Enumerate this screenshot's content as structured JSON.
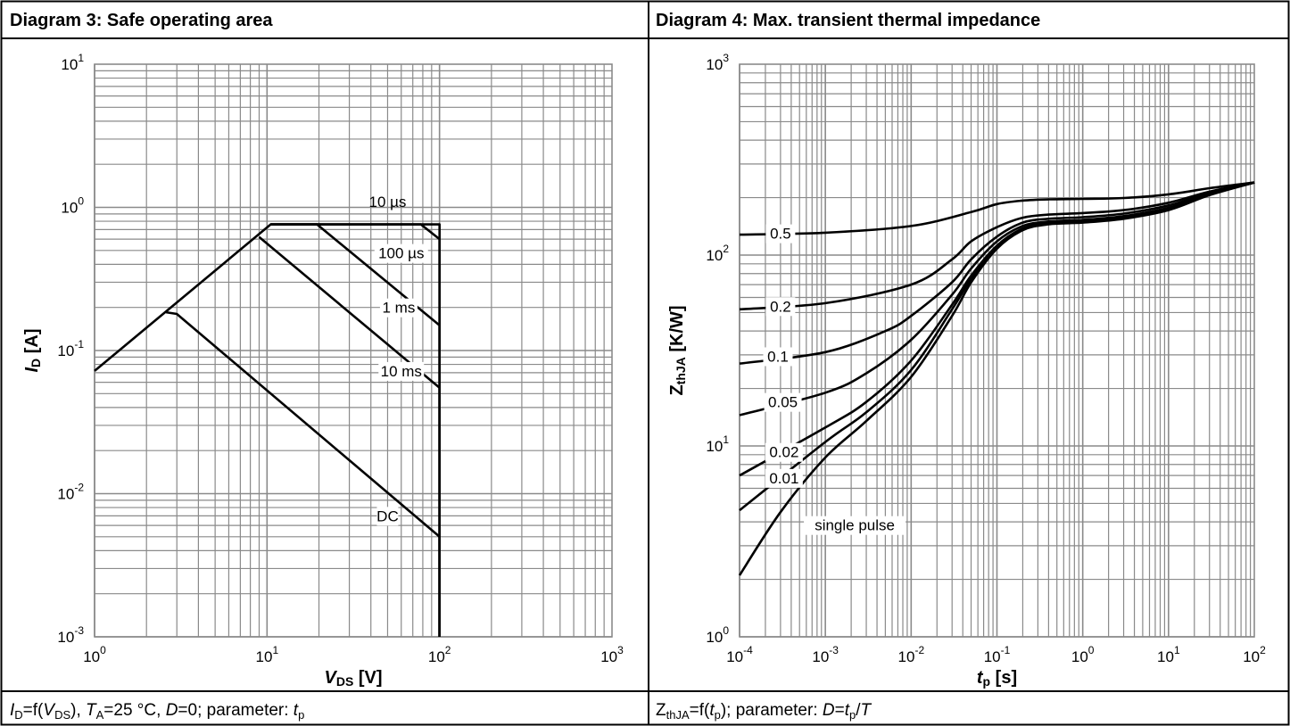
{
  "panels": [
    {
      "title": "Diagram 3: Safe operating area",
      "caption": {
        "parts": [
          {
            "t": "I",
            "s": "i"
          },
          {
            "t": "D",
            "s": "sub"
          },
          {
            "t": "=f("
          },
          {
            "t": "V",
            "s": "i"
          },
          {
            "t": "DS",
            "s": "sub"
          },
          {
            "t": "), "
          },
          {
            "t": "T",
            "s": "i"
          },
          {
            "t": "A",
            "s": "sub"
          },
          {
            "t": "=25 °C, "
          },
          {
            "t": "D",
            "s": "i"
          },
          {
            "t": "=0; parameter: "
          },
          {
            "t": "t",
            "s": "i"
          },
          {
            "t": "p",
            "s": "sub"
          }
        ]
      }
    },
    {
      "title": "Diagram 4: Max. transient thermal impedance",
      "caption": {
        "parts": [
          {
            "t": "Z"
          },
          {
            "t": "thJA",
            "s": "sub"
          },
          {
            "t": "=f("
          },
          {
            "t": "t",
            "s": "i"
          },
          {
            "t": "p",
            "s": "sub"
          },
          {
            "t": "); parameter: "
          },
          {
            "t": "D",
            "s": "i"
          },
          {
            "t": "="
          },
          {
            "t": "t",
            "s": "i"
          },
          {
            "t": "p",
            "s": "sub"
          },
          {
            "t": "/"
          },
          {
            "t": "T",
            "s": "i"
          }
        ]
      }
    }
  ],
  "chart_data": [
    {
      "type": "line",
      "xscale": "log",
      "yscale": "log",
      "xlim": [
        1,
        1000
      ],
      "ylim": [
        0.001,
        10
      ],
      "xticks": [
        {
          "base": "10",
          "exp": "0"
        },
        {
          "base": "10",
          "exp": "1"
        },
        {
          "base": "10",
          "exp": "2"
        },
        {
          "base": "10",
          "exp": "3"
        }
      ],
      "yticks": [
        {
          "base": "10",
          "exp": "-3"
        },
        {
          "base": "10",
          "exp": "-2"
        },
        {
          "base": "10",
          "exp": "-1"
        },
        {
          "base": "10",
          "exp": "0"
        },
        {
          "base": "10",
          "exp": "1"
        }
      ],
      "xlabel": {
        "main": "V",
        "sub": "DS",
        "unit": " [V]"
      },
      "ylabel": {
        "main": "I",
        "sub": "D",
        "unit": " [A]"
      },
      "grid": true,
      "series": [
        {
          "name": "10 µs",
          "x": [
            1,
            10.5,
            100,
            100
          ],
          "y": [
            0.072,
            0.76,
            0.76,
            0.001
          ]
        },
        {
          "name": "100 µs",
          "x": [
            10.5,
            78,
            100,
            100
          ],
          "y": [
            0.76,
            0.76,
            0.6,
            0.001
          ]
        },
        {
          "name": "1 ms",
          "x": [
            10.5,
            19.5,
            100,
            100
          ],
          "y": [
            0.76,
            0.76,
            0.15,
            0.001
          ]
        },
        {
          "name": "10 ms",
          "x": [
            9,
            100,
            100
          ],
          "y": [
            0.62,
            0.055,
            0.001
          ]
        },
        {
          "name": "DC",
          "x": [
            2.6,
            3,
            100,
            100
          ],
          "y": [
            0.185,
            0.18,
            0.005,
            0.001
          ]
        }
      ],
      "labels": [
        {
          "text": "10 µs",
          "x": 50,
          "y": 1.1,
          "box": false
        },
        {
          "text": "100 µs",
          "x": 60,
          "y": 0.48,
          "box": true
        },
        {
          "text": "1 ms",
          "x": 58,
          "y": 0.2,
          "box": true
        },
        {
          "text": "10 ms",
          "x": 60,
          "y": 0.072,
          "box": true
        },
        {
          "text": "DC",
          "x": 50,
          "y": 0.007,
          "box": true
        }
      ]
    },
    {
      "type": "line",
      "xscale": "log",
      "yscale": "log",
      "xlim": [
        0.0001,
        100
      ],
      "ylim": [
        1,
        1000
      ],
      "xticks": [
        {
          "base": "10",
          "exp": "-4"
        },
        {
          "base": "10",
          "exp": "-3"
        },
        {
          "base": "10",
          "exp": "-2"
        },
        {
          "base": "10",
          "exp": "-1"
        },
        {
          "base": "10",
          "exp": "0"
        },
        {
          "base": "10",
          "exp": "1"
        },
        {
          "base": "10",
          "exp": "2"
        }
      ],
      "yticks": [
        {
          "base": "10",
          "exp": "0"
        },
        {
          "base": "10",
          "exp": "1"
        },
        {
          "base": "10",
          "exp": "2"
        },
        {
          "base": "10",
          "exp": "3"
        }
      ],
      "xlabel": {
        "main": "t",
        "sub": "p",
        "unit": " [s]"
      },
      "ylabel": {
        "main": "Z",
        "sub": "thJA",
        "unit": " [K/W]"
      },
      "grid": true,
      "series": [
        {
          "name": "0.5",
          "x": [
            0.0001,
            0.001,
            0.01,
            0.05,
            0.1,
            0.2,
            0.4,
            1,
            3,
            10,
            30,
            100
          ],
          "y": [
            128,
            131,
            142,
            168,
            185,
            193,
            196,
            197,
            199,
            208,
            224,
            240
          ]
        },
        {
          "name": "0.2",
          "x": [
            0.0001,
            0.001,
            0.01,
            0.03,
            0.05,
            0.1,
            0.2,
            0.4,
            1,
            3,
            10,
            30,
            100
          ],
          "y": [
            52,
            56,
            70,
            95,
            118,
            140,
            157,
            163,
            166,
            172,
            188,
            215,
            240
          ]
        },
        {
          "name": "0.1",
          "x": [
            0.0001,
            0.001,
            0.005,
            0.01,
            0.03,
            0.05,
            0.1,
            0.2,
            0.4,
            1,
            3,
            10,
            30,
            100
          ],
          "y": [
            27,
            31,
            40,
            48,
            72,
            95,
            125,
            148,
            155,
            158,
            165,
            182,
            212,
            240
          ]
        },
        {
          "name": "0.05",
          "x": [
            0.0001,
            0.001,
            0.003,
            0.01,
            0.03,
            0.05,
            0.1,
            0.2,
            0.4,
            1,
            3,
            10,
            30,
            100
          ],
          "y": [
            14.5,
            19,
            24,
            36,
            62,
            85,
            118,
            142,
            150,
            153,
            160,
            177,
            210,
            240
          ]
        },
        {
          "name": "0.02",
          "x": [
            0.0001,
            0.001,
            0.003,
            0.01,
            0.03,
            0.05,
            0.1,
            0.2,
            0.4,
            1,
            3,
            10,
            30,
            100
          ],
          "y": [
            7,
            12.5,
            17,
            28,
            55,
            78,
            112,
            138,
            147,
            150,
            157,
            174,
            208,
            240
          ]
        },
        {
          "name": "0.01",
          "x": [
            0.0001,
            0.001,
            0.003,
            0.01,
            0.03,
            0.05,
            0.1,
            0.2,
            0.4,
            1,
            3,
            10,
            30,
            100
          ],
          "y": [
            4.6,
            10.5,
            15,
            25,
            52,
            75,
            110,
            137,
            146,
            149,
            156,
            173,
            207,
            240
          ]
        },
        {
          "name": "single pulse",
          "x": [
            0.0001,
            0.0003,
            0.001,
            0.003,
            0.01,
            0.03,
            0.05,
            0.1,
            0.2,
            0.4,
            1,
            3,
            10,
            30,
            100
          ],
          "y": [
            2.1,
            4.5,
            8.7,
            13.5,
            23,
            48,
            72,
            108,
            135,
            145,
            148,
            155,
            172,
            206,
            240
          ]
        }
      ],
      "labels": [
        {
          "text": "0.5",
          "x": 0.0003,
          "y": 130,
          "box": true
        },
        {
          "text": "0.2",
          "x": 0.0003,
          "y": 54,
          "box": true
        },
        {
          "text": "0.1",
          "x": 0.00028,
          "y": 29.5,
          "box": true
        },
        {
          "text": "0.05",
          "x": 0.00032,
          "y": 17,
          "box": true
        },
        {
          "text": "0.02",
          "x": 0.00033,
          "y": 9.3,
          "box": true
        },
        {
          "text": "0.01",
          "x": 0.00033,
          "y": 6.8,
          "box": true
        },
        {
          "text": "single pulse",
          "x": 0.0022,
          "y": 3.85,
          "box": true
        }
      ]
    }
  ]
}
